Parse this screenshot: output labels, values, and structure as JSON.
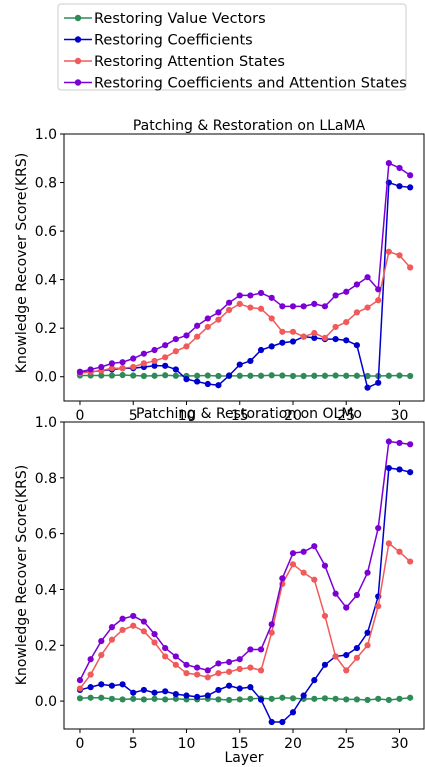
{
  "chart_data": {
    "type": "line",
    "legend": {
      "placement": "top",
      "entries": [
        {
          "name": "Restoring Value Vectors",
          "color": "#2e8b57"
        },
        {
          "name": "Restoring Coefficients",
          "color": "#0000cd"
        },
        {
          "name": "Restoring Attention States",
          "color": "#f05a5a"
        },
        {
          "name": "Restoring Coefficients and Attention States",
          "color": "#7b00d4"
        }
      ]
    },
    "x": [
      0,
      1,
      2,
      3,
      4,
      5,
      6,
      7,
      8,
      9,
      10,
      11,
      12,
      13,
      14,
      15,
      16,
      17,
      18,
      19,
      20,
      21,
      22,
      23,
      24,
      25,
      26,
      27,
      28,
      29,
      30,
      31
    ],
    "xlim": [
      -1.5,
      32.3
    ],
    "xticks": [
      0,
      5,
      10,
      15,
      20,
      25,
      30
    ],
    "shared_ylabel": "Knowledge Recover Score(KRS)",
    "xlabel": "Layer",
    "panels": [
      {
        "title": "Patching & Restoration on LLaMA",
        "ylim": [
          -0.1,
          1.0
        ],
        "yticks": [
          0.0,
          0.2,
          0.4,
          0.6,
          0.8,
          1.0
        ],
        "series": [
          {
            "name": "Restoring Value Vectors",
            "color": "#2e8b57",
            "values": [
              0.005,
              0.005,
              0.005,
              0.005,
              0.007,
              0.005,
              0.003,
              0.004,
              0.006,
              0.004,
              0.003,
              0.004,
              0.005,
              0.003,
              0.003,
              0.004,
              0.004,
              0.004,
              0.006,
              0.005,
              0.003,
              0.003,
              0.004,
              0.004,
              0.005,
              0.004,
              0.004,
              0.003,
              0.003,
              0.004,
              0.005,
              0.003
            ]
          },
          {
            "name": "Restoring Coefficients",
            "color": "#0000cd",
            "values": [
              0.02,
              0.02,
              0.025,
              0.03,
              0.035,
              0.035,
              0.04,
              0.045,
              0.045,
              0.03,
              -0.01,
              -0.02,
              -0.03,
              -0.035,
              0.005,
              0.05,
              0.065,
              0.11,
              0.125,
              0.14,
              0.145,
              0.165,
              0.16,
              0.155,
              0.155,
              0.15,
              0.13,
              -0.045,
              -0.025,
              0.8,
              0.785,
              0.78
            ]
          },
          {
            "name": "Restoring Attention States",
            "color": "#f05a5a",
            "values": [
              0.015,
              0.02,
              0.025,
              0.035,
              0.035,
              0.04,
              0.055,
              0.065,
              0.08,
              0.105,
              0.125,
              0.165,
              0.205,
              0.235,
              0.275,
              0.3,
              0.285,
              0.28,
              0.24,
              0.185,
              0.185,
              0.165,
              0.18,
              0.16,
              0.205,
              0.225,
              0.265,
              0.285,
              0.315,
              0.515,
              0.5,
              0.45
            ]
          },
          {
            "name": "Restoring Coefficients and Attention States",
            "color": "#7b00d4",
            "values": [
              0.02,
              0.03,
              0.04,
              0.055,
              0.06,
              0.075,
              0.095,
              0.11,
              0.13,
              0.155,
              0.17,
              0.21,
              0.24,
              0.265,
              0.305,
              0.335,
              0.335,
              0.345,
              0.325,
              0.29,
              0.29,
              0.29,
              0.3,
              0.29,
              0.335,
              0.35,
              0.38,
              0.41,
              0.36,
              0.88,
              0.86,
              0.83
            ]
          }
        ]
      },
      {
        "title": "Patching & Restoration on OLMo",
        "ylim": [
          -0.1,
          1.0
        ],
        "yticks": [
          0.0,
          0.2,
          0.4,
          0.6,
          0.8,
          1.0
        ],
        "series": [
          {
            "name": "Restoring Value Vectors",
            "color": "#2e8b57",
            "values": [
              0.01,
              0.012,
              0.012,
              0.008,
              0.006,
              0.008,
              0.006,
              0.008,
              0.006,
              0.008,
              0.006,
              0.006,
              0.008,
              0.006,
              0.004,
              0.006,
              0.008,
              0.01,
              0.008,
              0.012,
              0.01,
              0.008,
              0.008,
              0.01,
              0.008,
              0.006,
              0.006,
              0.004,
              0.008,
              0.004,
              0.008,
              0.012
            ]
          },
          {
            "name": "Restoring Coefficients",
            "color": "#0000cd",
            "values": [
              0.04,
              0.05,
              0.06,
              0.055,
              0.06,
              0.03,
              0.04,
              0.03,
              0.035,
              0.025,
              0.02,
              0.015,
              0.02,
              0.04,
              0.055,
              0.045,
              0.05,
              0.005,
              -0.075,
              -0.075,
              -0.04,
              0.02,
              0.075,
              0.13,
              0.16,
              0.165,
              0.19,
              0.245,
              0.375,
              0.835,
              0.83,
              0.82
            ]
          },
          {
            "name": "Restoring Attention States",
            "color": "#f05a5a",
            "values": [
              0.045,
              0.095,
              0.165,
              0.22,
              0.255,
              0.27,
              0.25,
              0.21,
              0.16,
              0.13,
              0.1,
              0.095,
              0.085,
              0.1,
              0.105,
              0.115,
              0.12,
              0.11,
              0.245,
              0.42,
              0.49,
              0.46,
              0.435,
              0.305,
              0.16,
              0.11,
              0.155,
              0.2,
              0.34,
              0.565,
              0.535,
              0.5
            ]
          },
          {
            "name": "Restoring Coefficients and Attention States",
            "color": "#7b00d4",
            "values": [
              0.075,
              0.15,
              0.215,
              0.265,
              0.295,
              0.305,
              0.285,
              0.24,
              0.19,
              0.16,
              0.13,
              0.12,
              0.11,
              0.135,
              0.14,
              0.15,
              0.185,
              0.185,
              0.275,
              0.44,
              0.53,
              0.535,
              0.555,
              0.485,
              0.385,
              0.335,
              0.38,
              0.46,
              0.62,
              0.93,
              0.925,
              0.92
            ]
          }
        ]
      }
    ]
  }
}
